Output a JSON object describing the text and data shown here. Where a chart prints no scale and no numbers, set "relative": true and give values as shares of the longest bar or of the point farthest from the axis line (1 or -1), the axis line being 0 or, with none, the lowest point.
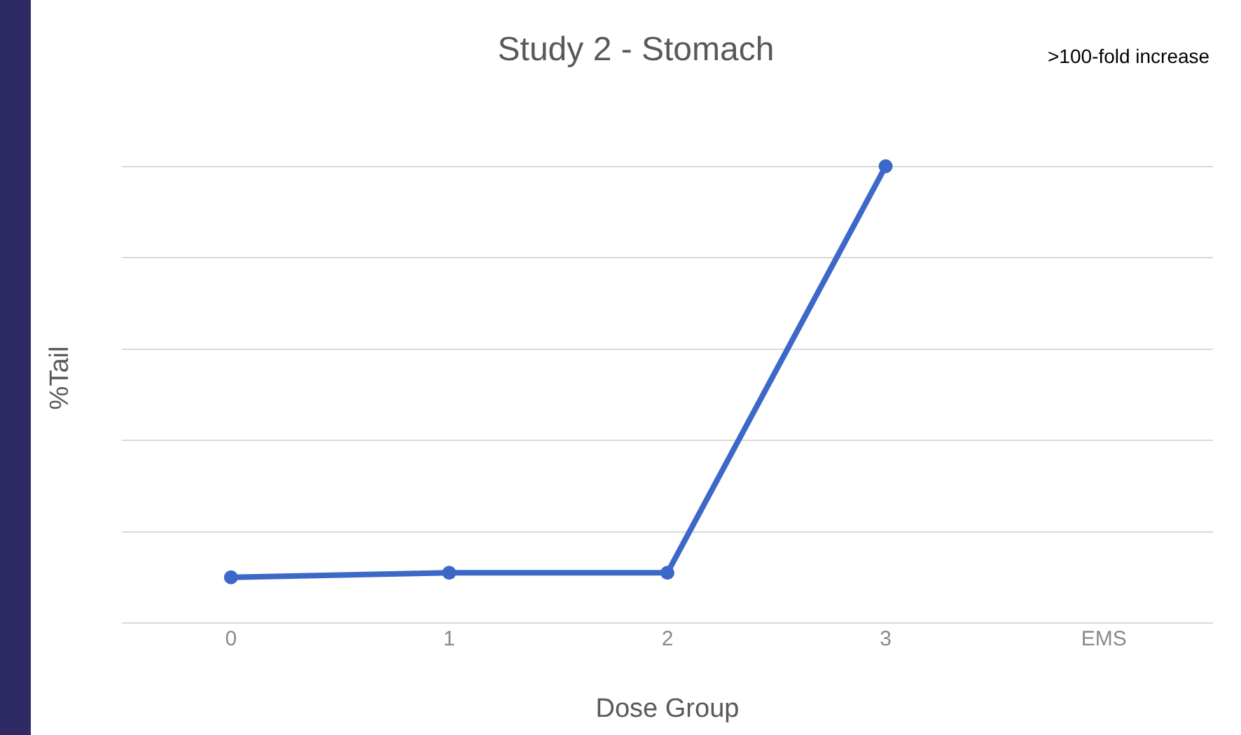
{
  "chart_data": {
    "type": "line",
    "title": "Study 2 - Stomach",
    "xlabel": "Dose Group",
    "ylabel": "%Tail",
    "categories": [
      "0",
      "1",
      "2",
      "3",
      "EMS"
    ],
    "series": [
      {
        "color": "#3c68c8",
        "values": [
          0.1,
          0.11,
          0.11,
          1,
          null
        ]
      }
    ],
    "relative": true,
    "grid": "y",
    "marker": "circle",
    "line_style": "solid",
    "annotations": [
      ">100-fold increase"
    ]
  }
}
